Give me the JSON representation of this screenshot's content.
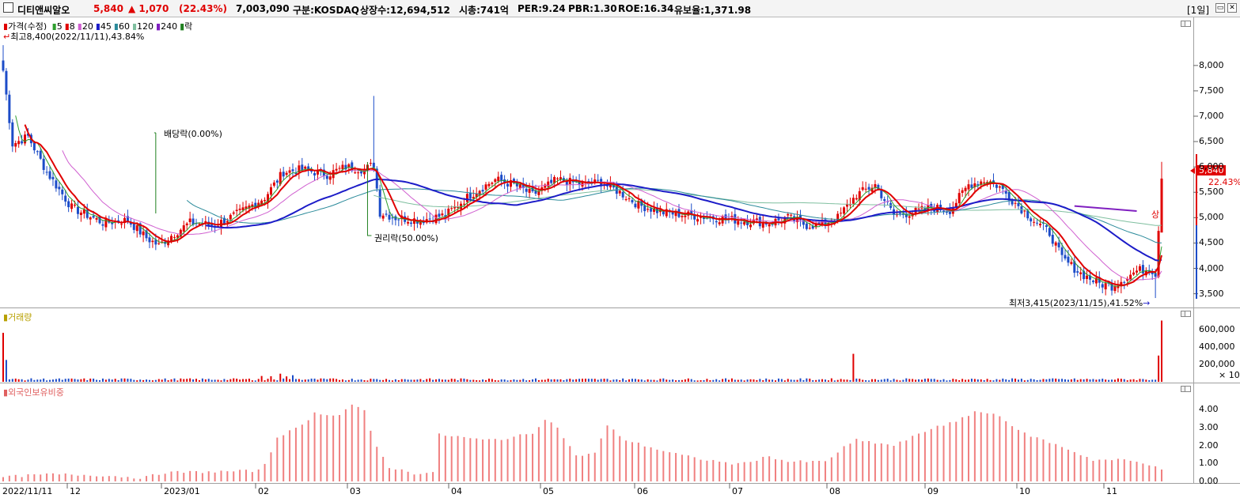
{
  "header": {
    "stock_name": "디티앤씨알오",
    "price": "5,840",
    "change": "▲ 1,070",
    "change_pct": "(22.43%)",
    "volume": "7,003,090",
    "market": "구분:KOSDAQ",
    "shares": "상장수:12,694,512",
    "market_cap": "시총:741억",
    "per": "PER:9.24",
    "pbr": "PBR:1.30",
    "roe": "ROE:16.34",
    "float_ratio": "유보율:1,371.98",
    "period": "[1일]"
  },
  "price_pane": {
    "legend_title": "가격(수정)",
    "ma_labels": [
      "5",
      "8",
      "20",
      "45",
      "60",
      "120",
      "240",
      "락"
    ],
    "ma_colors": [
      "#2e9e2e",
      "#e00000",
      "#d060d0",
      "#1c1cc8",
      "#2a8a9a",
      "#7fbf9f",
      "#8020c0",
      "#208020"
    ],
    "high_label": "최고8,400(2022/11/11),43.84%",
    "low_label": "최저3,415(2023/11/15),41.52%",
    "dividend_label": "배당락(0.00%)",
    "rights_label": "권리락(50.00%)",
    "current_price": "5,840",
    "current_pct": "22.43%",
    "up_marker": "상",
    "y_ticks": [
      "8,000",
      "7,500",
      "7,000",
      "6,500",
      "6,000",
      "5,500",
      "5,000",
      "4,500",
      "4,000",
      "3,500"
    ]
  },
  "volume_pane": {
    "legend_title": "거래량",
    "y_ticks": [
      "600,000",
      "400,000",
      "200,000"
    ],
    "unit": "× 10"
  },
  "foreign_pane": {
    "legend_title": "외국인보유비중",
    "y_ticks": [
      "4.00",
      "3.00",
      "2.00",
      "1.00",
      "0.00"
    ]
  },
  "x_axis": [
    "2022/11/11",
    "12",
    "2023/01",
    "02",
    "03",
    "04",
    "05",
    "06",
    "07",
    "08",
    "09",
    "10",
    "11"
  ],
  "chart_data": {
    "type": "candlestick",
    "price_range": [
      3300,
      8400
    ],
    "price_anchors": [
      [
        0,
        7900
      ],
      [
        3,
        6450
      ],
      [
        8,
        6600
      ],
      [
        14,
        5900
      ],
      [
        22,
        5200
      ],
      [
        32,
        4900
      ],
      [
        40,
        4950
      ],
      [
        46,
        4600
      ],
      [
        50,
        4450
      ],
      [
        54,
        4650
      ],
      [
        60,
        4900
      ],
      [
        68,
        4850
      ],
      [
        76,
        5100
      ],
      [
        84,
        5400
      ],
      [
        90,
        5900
      ],
      [
        96,
        5950
      ],
      [
        104,
        5850
      ],
      [
        110,
        6000
      ],
      [
        116,
        5950
      ],
      [
        119,
        6050
      ],
      [
        121,
        5100
      ],
      [
        126,
        5000
      ],
      [
        134,
        4950
      ],
      [
        142,
        5050
      ],
      [
        150,
        5450
      ],
      [
        158,
        5750
      ],
      [
        164,
        5650
      ],
      [
        170,
        5450
      ],
      [
        178,
        5750
      ],
      [
        186,
        5650
      ],
      [
        192,
        5700
      ],
      [
        198,
        5500
      ],
      [
        204,
        5250
      ],
      [
        212,
        5100
      ],
      [
        220,
        5050
      ],
      [
        228,
        5000
      ],
      [
        236,
        4950
      ],
      [
        246,
        4900
      ],
      [
        252,
        5000
      ],
      [
        258,
        4850
      ],
      [
        262,
        4850
      ],
      [
        268,
        5000
      ],
      [
        274,
        5450
      ],
      [
        280,
        5650
      ],
      [
        286,
        5050
      ],
      [
        292,
        5100
      ],
      [
        298,
        5200
      ],
      [
        304,
        5150
      ],
      [
        310,
        5650
      ],
      [
        316,
        5750
      ],
      [
        320,
        5600
      ],
      [
        324,
        5350
      ],
      [
        330,
        5000
      ],
      [
        336,
        4700
      ],
      [
        340,
        4200
      ],
      [
        346,
        3900
      ],
      [
        352,
        3700
      ],
      [
        356,
        3650
      ],
      [
        360,
        3800
      ],
      [
        364,
        3950
      ],
      [
        368,
        4000
      ],
      [
        370,
        3900
      ],
      [
        371,
        4770
      ],
      [
        372,
        5840
      ]
    ],
    "volume_range": [
      0,
      750000
    ],
    "volume_spikes": [
      [
        0,
        560000
      ],
      [
        1,
        250000
      ],
      [
        86,
        400000
      ],
      [
        273,
        320000
      ],
      [
        371,
        300000
      ],
      [
        372,
        700000
      ]
    ],
    "foreign_ratio_range": [
      0,
      4.8
    ],
    "foreign_ratio_anchors": [
      [
        0,
        0.25
      ],
      [
        15,
        0.4
      ],
      [
        30,
        0.35
      ],
      [
        45,
        0.2
      ],
      [
        52,
        0.5
      ],
      [
        70,
        0.55
      ],
      [
        82,
        0.6
      ],
      [
        85,
        1.2
      ],
      [
        88,
        2.5
      ],
      [
        95,
        3.0
      ],
      [
        100,
        3.8
      ],
      [
        108,
        3.7
      ],
      [
        112,
        4.3
      ],
      [
        116,
        3.9
      ],
      [
        119,
        2.2
      ],
      [
        124,
        0.8
      ],
      [
        132,
        0.45
      ],
      [
        138,
        0.5
      ],
      [
        140,
        2.6
      ],
      [
        146,
        2.5
      ],
      [
        154,
        2.3
      ],
      [
        162,
        2.4
      ],
      [
        170,
        2.7
      ],
      [
        174,
        3.5
      ],
      [
        178,
        3.0
      ],
      [
        184,
        1.4
      ],
      [
        190,
        1.6
      ],
      [
        194,
        3.1
      ],
      [
        200,
        2.3
      ],
      [
        212,
        1.7
      ],
      [
        222,
        1.3
      ],
      [
        236,
        0.95
      ],
      [
        246,
        1.4
      ],
      [
        252,
        1.1
      ],
      [
        264,
        1.1
      ],
      [
        270,
        1.9
      ],
      [
        274,
        2.3
      ],
      [
        286,
        2.0
      ],
      [
        300,
        3.1
      ],
      [
        306,
        3.3
      ],
      [
        312,
        3.9
      ],
      [
        320,
        3.7
      ],
      [
        326,
        2.8
      ],
      [
        334,
        2.3
      ],
      [
        342,
        1.8
      ],
      [
        350,
        1.2
      ],
      [
        360,
        1.2
      ],
      [
        370,
        0.9
      ],
      [
        372,
        0.6
      ]
    ],
    "x": [
      "2022/11/11",
      "12",
      "2023/01",
      "02",
      "03",
      "04",
      "05",
      "06",
      "07",
      "08",
      "09",
      "10",
      "11"
    ]
  }
}
